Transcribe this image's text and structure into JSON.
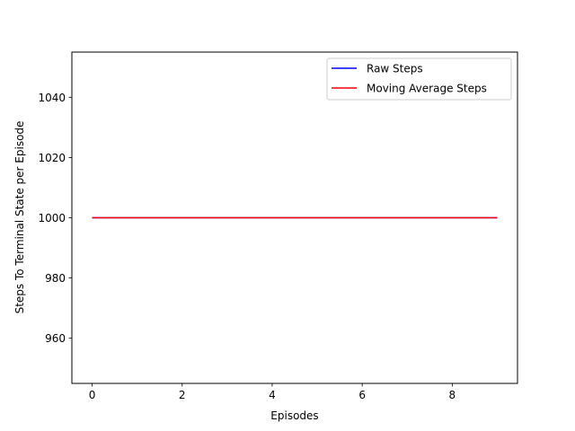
{
  "chart_data": {
    "type": "line",
    "title": "",
    "xlabel": "Episodes",
    "ylabel": "Steps To Terminal State per Episode",
    "xlim": [
      -0.45,
      9.45
    ],
    "ylim": [
      945,
      1055
    ],
    "x_ticks": [
      0,
      2,
      4,
      6,
      8
    ],
    "y_ticks": [
      960,
      980,
      1000,
      1020,
      1040
    ],
    "grid": false,
    "legend_position": "upper-right",
    "x": [
      0,
      1,
      2,
      3,
      4,
      5,
      6,
      7,
      8,
      9
    ],
    "series": [
      {
        "name": "Raw Steps",
        "color": "#0000ff",
        "values": [
          1000,
          1000,
          1000,
          1000,
          1000,
          1000,
          1000,
          1000,
          1000,
          1000
        ]
      },
      {
        "name": "Moving Average Steps",
        "color": "#ff0000",
        "values": [
          1000,
          1000,
          1000,
          1000,
          1000,
          1000,
          1000,
          1000,
          1000,
          1000
        ]
      }
    ]
  }
}
